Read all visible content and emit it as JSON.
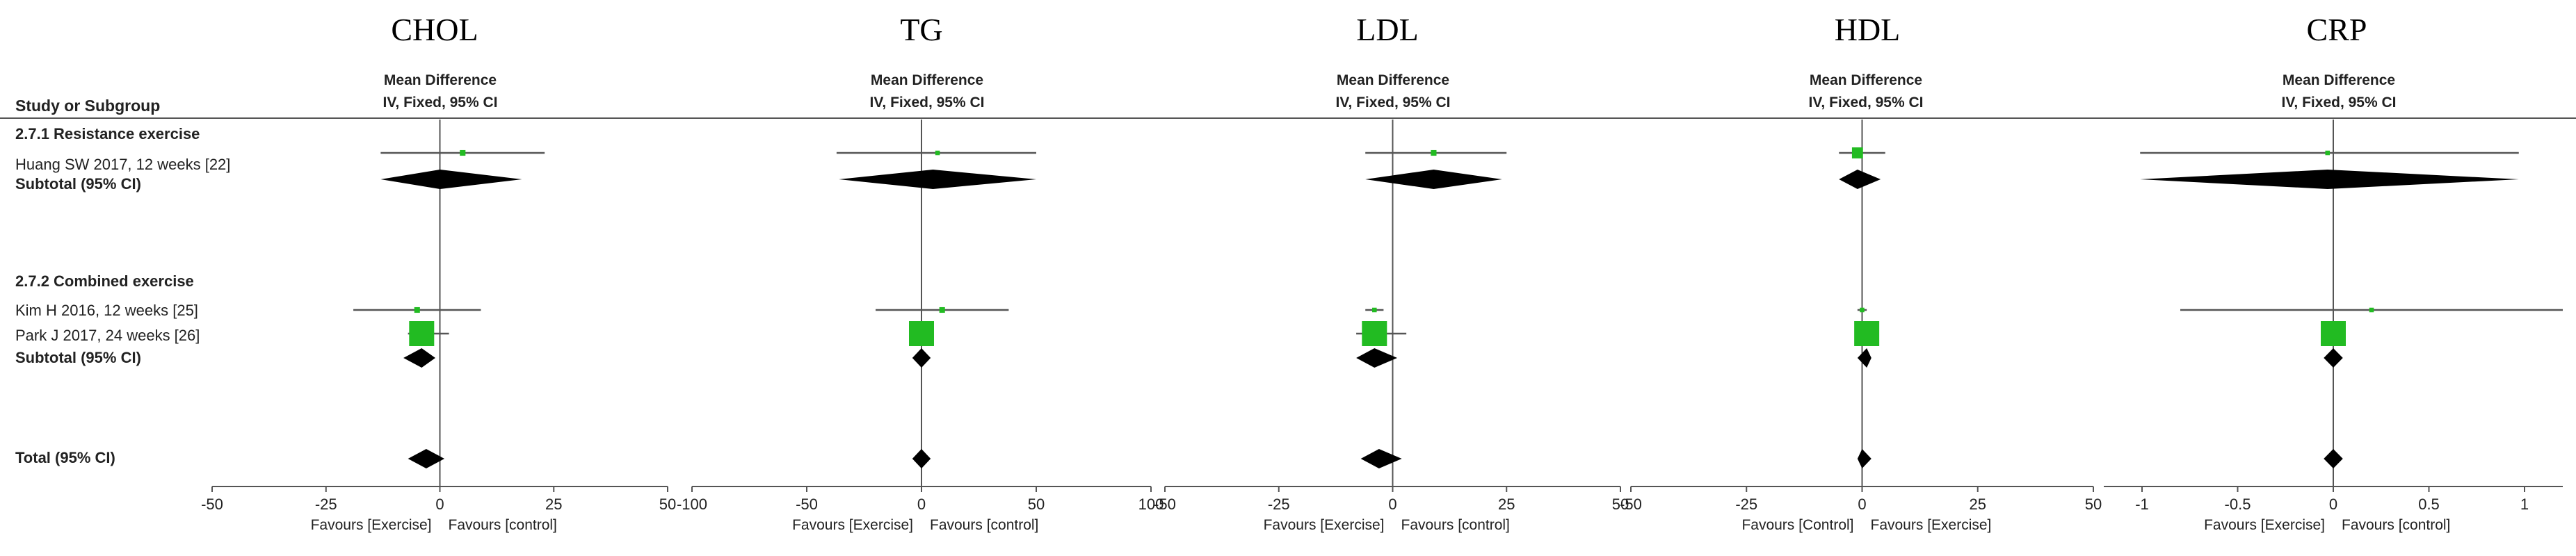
{
  "study_column": {
    "header": "Study or Subgroup",
    "rows": [
      {
        "label": "2.7.1 Resistance exercise",
        "bold": true
      },
      {
        "label": "Huang SW 2017, 12 weeks [22]",
        "bold": false
      },
      {
        "label": "Subtotal (95% CI)",
        "bold": true
      },
      {
        "label": "2.7.2 Combined exercise",
        "bold": true
      },
      {
        "label": "Kim H 2016, 12 weeks [25]",
        "bold": false
      },
      {
        "label": "Park J 2017, 24 weeks [26]",
        "bold": false
      },
      {
        "label": "Subtotal (95% CI)",
        "bold": true
      },
      {
        "label": "Total (95% CI)",
        "bold": true
      }
    ]
  },
  "colors": {
    "study_marker": "#22bb22",
    "summary_diamond": "#000000",
    "lines": "#555555"
  },
  "chart_data": [
    {
      "type": "forest",
      "title": "CHOL",
      "header_line1": "Mean Difference",
      "header_line2": "IV, Fixed, 95% CI",
      "xlim": [
        -50,
        50
      ],
      "ticks": [
        "-50",
        "-25",
        "0",
        "25",
        "50"
      ],
      "tick_values": [
        -50,
        -25,
        0,
        25,
        50
      ],
      "favours_left": "Favours [Exercise]",
      "favours_right": "Favours [control]",
      "studies": [
        {
          "name": "Huang SW 2017, 12 weeks [22]",
          "est": 5,
          "lo": -13,
          "hi": 23,
          "weight": 0.1
        },
        {
          "name": "Kim H 2016, 12 weeks [25]",
          "est": -5,
          "lo": -19,
          "hi": 9,
          "weight": 0.1
        },
        {
          "name": "Park J 2017, 24 weeks [26]",
          "est": -4,
          "lo": -7,
          "hi": 2,
          "weight": 1.0
        }
      ],
      "subtotals": [
        {
          "name": "2.7.1 Subtotal (95% CI)",
          "est": 0,
          "lo": -13,
          "hi": 18
        },
        {
          "name": "2.7.2 Subtotal (95% CI)",
          "est": -4,
          "lo": -8,
          "hi": -1
        },
        {
          "name": "Total (95% CI)",
          "est": -3,
          "lo": -7,
          "hi": 1
        }
      ]
    },
    {
      "type": "forest",
      "title": "TG",
      "header_line1": "Mean Difference",
      "header_line2": "IV, Fixed, 95% CI",
      "xlim": [
        -100,
        100
      ],
      "ticks": [
        "-100",
        "-50",
        "0",
        "50",
        "100"
      ],
      "tick_values": [
        -100,
        -50,
        0,
        50,
        100
      ],
      "favours_left": "Favours [Exercise]",
      "favours_right": "Favours [control]",
      "studies": [
        {
          "name": "Huang SW 2017, 12 weeks [22]",
          "est": 7,
          "lo": -37,
          "hi": 50,
          "weight": 0.05
        },
        {
          "name": "Kim H 2016, 12 weeks [25]",
          "est": 9,
          "lo": -20,
          "hi": 38,
          "weight": 0.1
        },
        {
          "name": "Park J 2017, 24 weeks [26]",
          "est": 0,
          "lo": -5,
          "hi": 5,
          "weight": 1.0
        }
      ],
      "subtotals": [
        {
          "name": "2.7.1 Subtotal (95% CI)",
          "est": 5,
          "lo": -36,
          "hi": 50
        },
        {
          "name": "2.7.2 Subtotal (95% CI)",
          "est": 0,
          "lo": -4,
          "hi": 4
        },
        {
          "name": "Total (95% CI)",
          "est": 0,
          "lo": -4,
          "hi": 4
        }
      ]
    },
    {
      "type": "forest",
      "title": "LDL",
      "header_line1": "Mean Difference",
      "header_line2": "IV, Fixed, 95% CI",
      "xlim": [
        -50,
        50
      ],
      "ticks": [
        "-50",
        "-25",
        "0",
        "25",
        "50"
      ],
      "tick_values": [
        -50,
        -25,
        0,
        25,
        50
      ],
      "favours_left": "Favours [Exercise]",
      "favours_right": "Favours [control]",
      "studies": [
        {
          "name": "Huang SW 2017, 12 weeks [22]",
          "est": 9,
          "lo": -6,
          "hi": 25,
          "weight": 0.1
        },
        {
          "name": "Kim H 2016, 12 weeks [25]",
          "est": -4,
          "lo": -6,
          "hi": -2,
          "weight": 0.05
        },
        {
          "name": "Park J 2017, 24 weeks [26]",
          "est": -4,
          "lo": -8,
          "hi": 3,
          "weight": 1.0
        }
      ],
      "subtotals": [
        {
          "name": "2.7.1 Subtotal (95% CI)",
          "est": 9,
          "lo": -6,
          "hi": 24
        },
        {
          "name": "2.7.2 Subtotal (95% CI)",
          "est": -4,
          "lo": -8,
          "hi": 1
        },
        {
          "name": "Total (95% CI)",
          "est": -3,
          "lo": -7,
          "hi": 2
        }
      ]
    },
    {
      "type": "forest",
      "title": "HDL",
      "header_line1": "Mean Difference",
      "header_line2": "IV, Fixed, 95% CI",
      "xlim": [
        -50,
        50
      ],
      "ticks": [
        "-50",
        "-25",
        "0",
        "25",
        "50"
      ],
      "tick_values": [
        -50,
        -25,
        0,
        25,
        50
      ],
      "favours_left": "Favours [Control]",
      "favours_right": "Favours [Exercise]",
      "studies": [
        {
          "name": "Huang SW 2017, 12 weeks [22]",
          "est": -1,
          "lo": -5,
          "hi": 5,
          "weight": 0.35
        },
        {
          "name": "Kim H 2016, 12 weeks [25]",
          "est": 0,
          "lo": -1,
          "hi": 1,
          "weight": 0.05
        },
        {
          "name": "Park J 2017, 24 weeks [26]",
          "est": 1,
          "lo": -1,
          "hi": 2,
          "weight": 1.0
        }
      ],
      "subtotals": [
        {
          "name": "2.7.1 Subtotal (95% CI)",
          "est": -1,
          "lo": -5,
          "hi": 4
        },
        {
          "name": "2.7.2 Subtotal (95% CI)",
          "est": 1,
          "lo": -1,
          "hi": 2
        },
        {
          "name": "Total (95% CI)",
          "est": 0,
          "lo": -1,
          "hi": 2
        }
      ]
    },
    {
      "type": "forest",
      "title": "CRP",
      "header_line1": "Mean Difference",
      "header_line2": "IV, Fixed, 95% CI",
      "xlim": [
        -1.2,
        1.2
      ],
      "ticks": [
        "-1",
        "-0.5",
        "0",
        "0.5",
        "1"
      ],
      "tick_values": [
        -1,
        -0.5,
        0,
        0.5,
        1
      ],
      "favours_left": "Favours [Exercise]",
      "favours_right": "Favours [control]",
      "studies": [
        {
          "name": "Huang SW 2017, 12 weeks [22]",
          "est": -0.03,
          "lo": -1.01,
          "hi": 0.97,
          "weight": 0.05
        },
        {
          "name": "Kim H 2016, 12 weeks [25]",
          "est": 0.2,
          "lo": -0.8,
          "hi": 1.2,
          "weight": 0.05
        },
        {
          "name": "Park J 2017, 24 weeks [26]",
          "est": 0,
          "lo": -0.06,
          "hi": 0.06,
          "weight": 1.0
        }
      ],
      "subtotals": [
        {
          "name": "2.7.1 Subtotal (95% CI)",
          "est": -0.03,
          "lo": -1.01,
          "hi": 0.97
        },
        {
          "name": "2.7.2 Subtotal (95% CI)",
          "est": 0,
          "lo": -0.05,
          "hi": 0.05
        },
        {
          "name": "Total (95% CI)",
          "est": 0,
          "lo": -0.05,
          "hi": 0.05
        }
      ]
    }
  ]
}
